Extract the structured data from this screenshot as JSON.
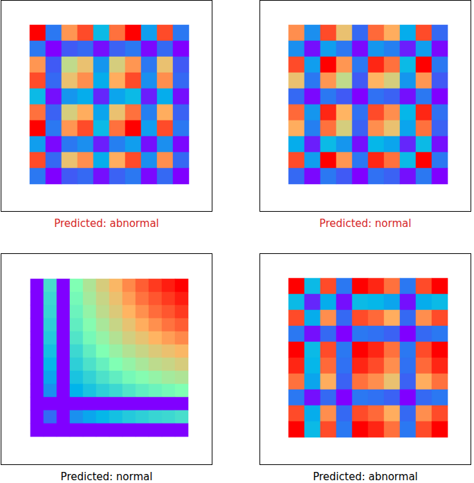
{
  "chart_data": [
    {
      "type": "heatmap",
      "title": "Predicted: abnormal",
      "tick_labels": false,
      "cells": [
        [
          1,
          0.2,
          0.8,
          0.9,
          0.3,
          0.85,
          1,
          0.25,
          0.9,
          0.2
        ],
        [
          0.2,
          0.04,
          0.16,
          0.18,
          0.06,
          0.17,
          0.2,
          0.05,
          0.18,
          0.04
        ],
        [
          0.8,
          0.16,
          0.64,
          0.72,
          0.24,
          0.68,
          0.8,
          0.2,
          0.72,
          0.16
        ],
        [
          0.9,
          0.18,
          0.72,
          0.81,
          0.27,
          0.77,
          0.9,
          0.23,
          0.81,
          0.18
        ],
        [
          0.3,
          0.06,
          0.24,
          0.27,
          0.09,
          0.26,
          0.3,
          0.08,
          0.27,
          0.06
        ],
        [
          0.85,
          0.17,
          0.68,
          0.77,
          0.26,
          0.72,
          0.85,
          0.21,
          0.77,
          0.17
        ],
        [
          1,
          0.2,
          0.8,
          0.9,
          0.3,
          0.85,
          1,
          0.25,
          0.9,
          0.2
        ],
        [
          0.25,
          0.05,
          0.2,
          0.23,
          0.08,
          0.21,
          0.25,
          0.06,
          0.23,
          0.05
        ],
        [
          0.9,
          0.18,
          0.72,
          0.81,
          0.27,
          0.77,
          0.9,
          0.23,
          0.81,
          0.18
        ],
        [
          0.2,
          0.04,
          0.16,
          0.18,
          0.06,
          0.17,
          0.2,
          0.05,
          0.18,
          0.04
        ]
      ]
    },
    {
      "type": "heatmap",
      "title": "Predicted: normal",
      "tick_labels": false,
      "cells": [
        [
          0.81,
          0.23,
          0.9,
          0.72,
          0.18,
          0.86,
          0.77,
          0.27,
          0.9,
          0.18
        ],
        [
          0.23,
          0.06,
          0.25,
          0.2,
          0.05,
          0.24,
          0.21,
          0.08,
          0.25,
          0.05
        ],
        [
          0.9,
          0.25,
          1,
          0.8,
          0.2,
          0.95,
          0.85,
          0.3,
          1,
          0.2
        ],
        [
          0.72,
          0.2,
          0.8,
          0.64,
          0.16,
          0.76,
          0.68,
          0.24,
          0.8,
          0.16
        ],
        [
          0.18,
          0.05,
          0.2,
          0.16,
          0.04,
          0.19,
          0.17,
          0.06,
          0.2,
          0.04
        ],
        [
          0.86,
          0.24,
          0.95,
          0.76,
          0.19,
          0.9,
          0.81,
          0.29,
          0.95,
          0.19
        ],
        [
          0.77,
          0.21,
          0.85,
          0.68,
          0.17,
          0.81,
          0.72,
          0.26,
          0.85,
          0.17
        ],
        [
          0.27,
          0.08,
          0.3,
          0.24,
          0.06,
          0.29,
          0.26,
          0.09,
          0.3,
          0.06
        ],
        [
          0.9,
          0.25,
          1,
          0.8,
          0.2,
          0.95,
          0.85,
          0.3,
          1,
          0.2
        ],
        [
          0.18,
          0.05,
          0.2,
          0.16,
          0.04,
          0.19,
          0.17,
          0.06,
          0.2,
          0.04
        ]
      ]
    },
    {
      "type": "heatmap",
      "title": "Predicted: normal",
      "tick_labels": false,
      "cells": [
        [
          0,
          0.39,
          0,
          0.5,
          0.59,
          0.67,
          0.74,
          0.81,
          0.87,
          0.92,
          0.96,
          1
        ],
        [
          0,
          0.37,
          0,
          0.48,
          0.57,
          0.64,
          0.71,
          0.78,
          0.84,
          0.88,
          0.92,
          0.96
        ],
        [
          0,
          0.36,
          0,
          0.46,
          0.54,
          0.62,
          0.68,
          0.75,
          0.8,
          0.85,
          0.88,
          0.92
        ],
        [
          0,
          0.34,
          0,
          0.44,
          0.51,
          0.58,
          0.64,
          0.7,
          0.76,
          0.8,
          0.84,
          0.87
        ],
        [
          0,
          0.32,
          0,
          0.41,
          0.48,
          0.54,
          0.6,
          0.66,
          0.7,
          0.75,
          0.78,
          0.81
        ],
        [
          0,
          0.29,
          0,
          0.37,
          0.44,
          0.5,
          0.55,
          0.6,
          0.64,
          0.68,
          0.71,
          0.74
        ],
        [
          0,
          0.26,
          0,
          0.34,
          0.4,
          0.45,
          0.5,
          0.54,
          0.58,
          0.62,
          0.64,
          0.67
        ],
        [
          0,
          0.23,
          0,
          0.3,
          0.35,
          0.4,
          0.44,
          0.48,
          0.51,
          0.54,
          0.57,
          0.59
        ],
        [
          0,
          0.2,
          0,
          0.25,
          0.3,
          0.34,
          0.37,
          0.41,
          0.44,
          0.46,
          0.48,
          0.5
        ],
        [
          0,
          0,
          0,
          0,
          0,
          0,
          0,
          0,
          0,
          0,
          0,
          0
        ],
        [
          0,
          0.15,
          0,
          0.2,
          0.23,
          0.26,
          0.29,
          0.32,
          0.34,
          0.36,
          0.37,
          0.39
        ],
        [
          0,
          0,
          0,
          0,
          0,
          0,
          0,
          0,
          0,
          0,
          0,
          0
        ]
      ]
    },
    {
      "type": "heatmap",
      "title": "Predicted: abnormal",
      "tick_labels": false,
      "cells": [
        [
          1,
          0.3,
          0.9,
          0.2,
          1,
          0.95,
          0.85,
          0.2,
          0.9,
          1
        ],
        [
          0.3,
          0.09,
          0.27,
          0.06,
          0.3,
          0.29,
          0.26,
          0.06,
          0.27,
          0.3
        ],
        [
          0.9,
          0.27,
          0.81,
          0.18,
          0.9,
          0.86,
          0.77,
          0.18,
          0.81,
          0.9
        ],
        [
          0.2,
          0.06,
          0.18,
          0.04,
          0.2,
          0.19,
          0.17,
          0.04,
          0.18,
          0.2
        ],
        [
          1,
          0.3,
          0.9,
          0.2,
          1,
          0.95,
          0.85,
          0.2,
          0.9,
          1
        ],
        [
          0.95,
          0.29,
          0.86,
          0.19,
          0.95,
          0.9,
          0.81,
          0.19,
          0.86,
          0.95
        ],
        [
          0.85,
          0.26,
          0.77,
          0.17,
          0.85,
          0.81,
          0.72,
          0.17,
          0.77,
          0.85
        ],
        [
          0.2,
          0.06,
          0.18,
          0.04,
          0.2,
          0.19,
          0.17,
          0.04,
          0.18,
          0.2
        ],
        [
          0.9,
          0.27,
          0.81,
          0.18,
          0.9,
          0.86,
          0.77,
          0.18,
          0.81,
          0.9
        ],
        [
          1,
          0.3,
          0.9,
          0.2,
          1,
          0.95,
          0.85,
          0.2,
          0.9,
          1
        ]
      ]
    }
  ]
}
